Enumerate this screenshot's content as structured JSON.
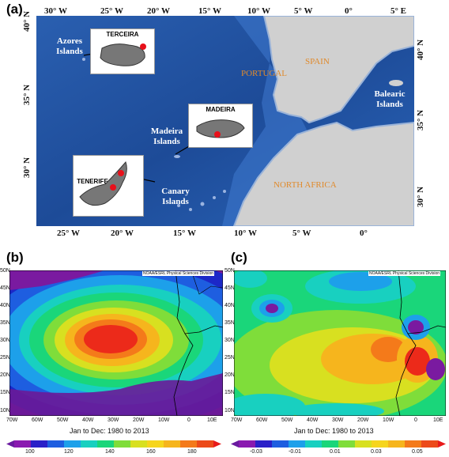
{
  "panel_a": {
    "label": "(a)",
    "top_lon": [
      "30° W",
      "25° W",
      "20° W",
      "15° W",
      "10° W",
      "5° W",
      "0°",
      "5° E"
    ],
    "bottom_lon": [
      "25° W",
      "20° W",
      "15° W",
      "10° W",
      "5° W",
      "0°"
    ],
    "left_lat": [
      "40° N",
      "35° N",
      "30° N"
    ],
    "right_lat": [
      "40° N",
      "35° N",
      "30° N"
    ],
    "islands": {
      "azores": "Azores Islands",
      "madeira": "Madeira Islands",
      "canary": "Canary Islands",
      "balearic": "Balearic Islands"
    },
    "countries": {
      "portugal": "PORTUGAL",
      "spain": "SPAIN",
      "north_africa": "NORTH AFRICA"
    },
    "insets": {
      "terceira": "TERCEIRA",
      "madeira": "MADEIRA",
      "tenerife": "TENERIFE"
    },
    "colors": {
      "ocean": "#1f4e9c",
      "land": "#cfcfcf",
      "marker": "#e8101a"
    }
  },
  "panel_b": {
    "label": "(b)",
    "credit": "NOAA/ESRL Physical Sciences Division",
    "period": "Jan to Dec: 1980 to 2013",
    "lat_ticks": [
      "50N",
      "45N",
      "40N",
      "35N",
      "30N",
      "25N",
      "20N",
      "15N",
      "10N"
    ],
    "lon_ticks": [
      "70W",
      "60W",
      "50W",
      "40W",
      "30W",
      "20W",
      "10W",
      "0",
      "10E"
    ],
    "colorbar_ticks": [
      "100",
      "120",
      "140",
      "160",
      "180"
    ]
  },
  "panel_c": {
    "label": "(c)",
    "credit": "NOAA/ESRL Physical Sciences Division",
    "period": "Jan to Dec: 1980 to 2013",
    "lat_ticks": [
      "50N",
      "45N",
      "40N",
      "35N",
      "30N",
      "25N",
      "20N",
      "15N",
      "10N"
    ],
    "lon_ticks": [
      "70W",
      "60W",
      "50W",
      "40W",
      "30W",
      "20W",
      "10W",
      "0",
      "10E"
    ],
    "colorbar_ticks": [
      "-0.03",
      "-0.01",
      "0.01",
      "0.03",
      "0.05"
    ]
  }
}
